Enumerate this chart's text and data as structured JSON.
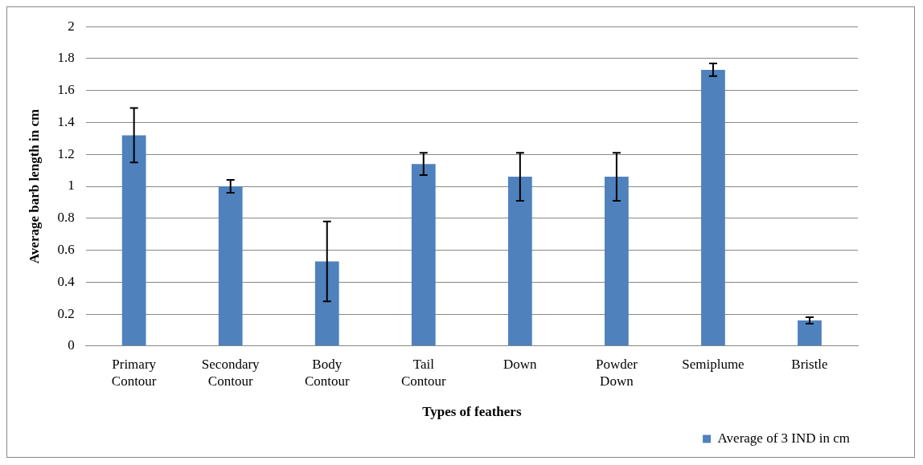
{
  "chart_data": {
    "type": "bar",
    "xlabel": "Types of feathers",
    "ylabel": "Average barb length in cm",
    "categories": [
      "Primary Contour",
      "Secondary Contour",
      "Body Contour",
      "Tail Contour",
      "Down",
      "Powder Down",
      "Semiplume",
      "Bristle"
    ],
    "series": [
      {
        "name": "Average of 3 IND in cm",
        "color": "#4f81bd",
        "values": [
          1.32,
          1.0,
          0.53,
          1.14,
          1.06,
          1.06,
          1.73,
          0.16
        ],
        "errors": [
          0.17,
          0.04,
          0.25,
          0.07,
          0.15,
          0.15,
          0.04,
          0.02
        ]
      }
    ],
    "ylim": [
      0,
      2
    ],
    "yticks": [
      0,
      0.2,
      0.4,
      0.6,
      0.8,
      1,
      1.2,
      1.4,
      1.6,
      1.8,
      2
    ],
    "grid": "y",
    "legend": "bottom right"
  }
}
